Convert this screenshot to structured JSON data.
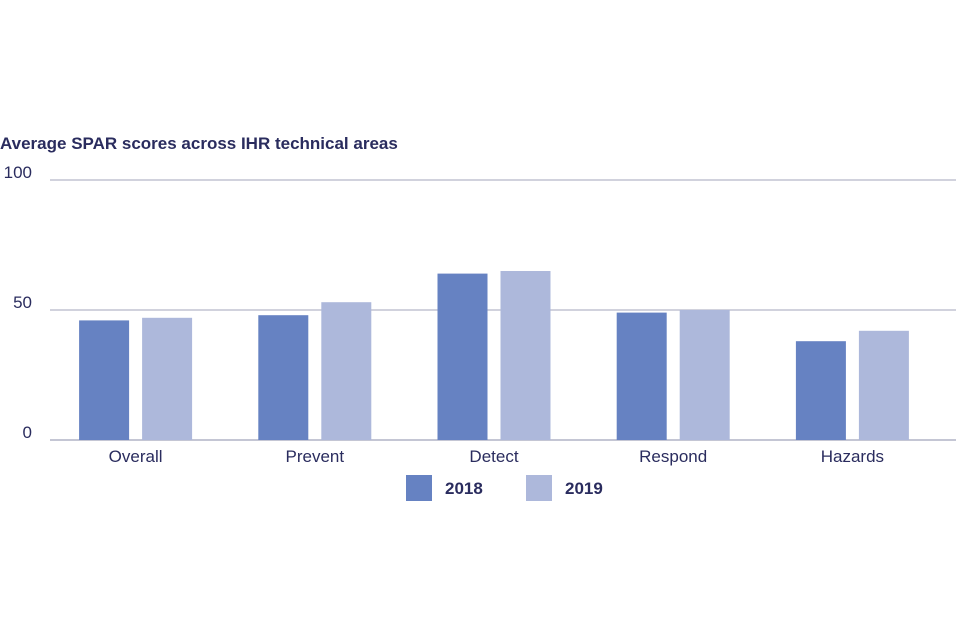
{
  "chart_data": {
    "type": "bar",
    "title": "Average SPAR scores across IHR technical areas",
    "categories": [
      "Overall",
      "Prevent",
      "Detect",
      "Respond",
      "Hazards"
    ],
    "series": [
      {
        "name": "2018",
        "color": "#6682c2",
        "values": [
          46,
          48,
          64,
          49,
          38
        ]
      },
      {
        "name": "2019",
        "color": "#adb8db",
        "values": [
          47,
          53,
          65,
          50,
          42
        ]
      }
    ],
    "yticks": [
      0,
      50,
      100
    ],
    "ylim": [
      0,
      100
    ],
    "xlabel": "",
    "ylabel": "",
    "grid": true,
    "legend_position": "bottom-center"
  }
}
